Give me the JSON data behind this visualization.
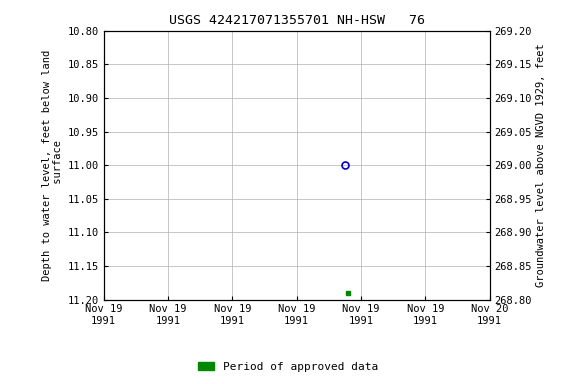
{
  "title": "USGS 424217071355701 NH-HSW   76",
  "ylabel_left": "Depth to water level, feet below land\n surface",
  "ylabel_right": "Groundwater level above NGVD 1929, feet",
  "ylim_left": [
    10.8,
    11.2
  ],
  "ylim_right": [
    269.2,
    268.8
  ],
  "yticks_left": [
    10.8,
    10.85,
    10.9,
    10.95,
    11.0,
    11.05,
    11.1,
    11.15,
    11.2
  ],
  "yticks_right": [
    269.2,
    269.15,
    269.1,
    269.05,
    269.0,
    268.95,
    268.9,
    268.85,
    268.8
  ],
  "open_circle_x_hours": 90,
  "open_circle_value": 11.0,
  "filled_square_x_hours": 91,
  "filled_square_value": 11.19,
  "open_circle_color": "#0000cc",
  "filled_square_color": "#008800",
  "legend_label": "Period of approved data",
  "legend_color": "#008800",
  "background_color": "#ffffff",
  "grid_color": "#b0b0b0",
  "font_color": "#000000",
  "title_fontsize": 9.5,
  "label_fontsize": 7.5,
  "tick_fontsize": 7.5,
  "legend_fontsize": 8,
  "xstart_hours": 0,
  "xend_hours": 144,
  "xtick_hours": [
    0,
    24,
    48,
    72,
    96,
    120,
    144
  ],
  "xtick_labels": [
    "Nov 19\n1991",
    "Nov 19\n1991",
    "Nov 19\n1991",
    "Nov 19\n1991",
    "Nov 19\n1991",
    "Nov 19\n1991",
    "Nov 20\n1991"
  ]
}
